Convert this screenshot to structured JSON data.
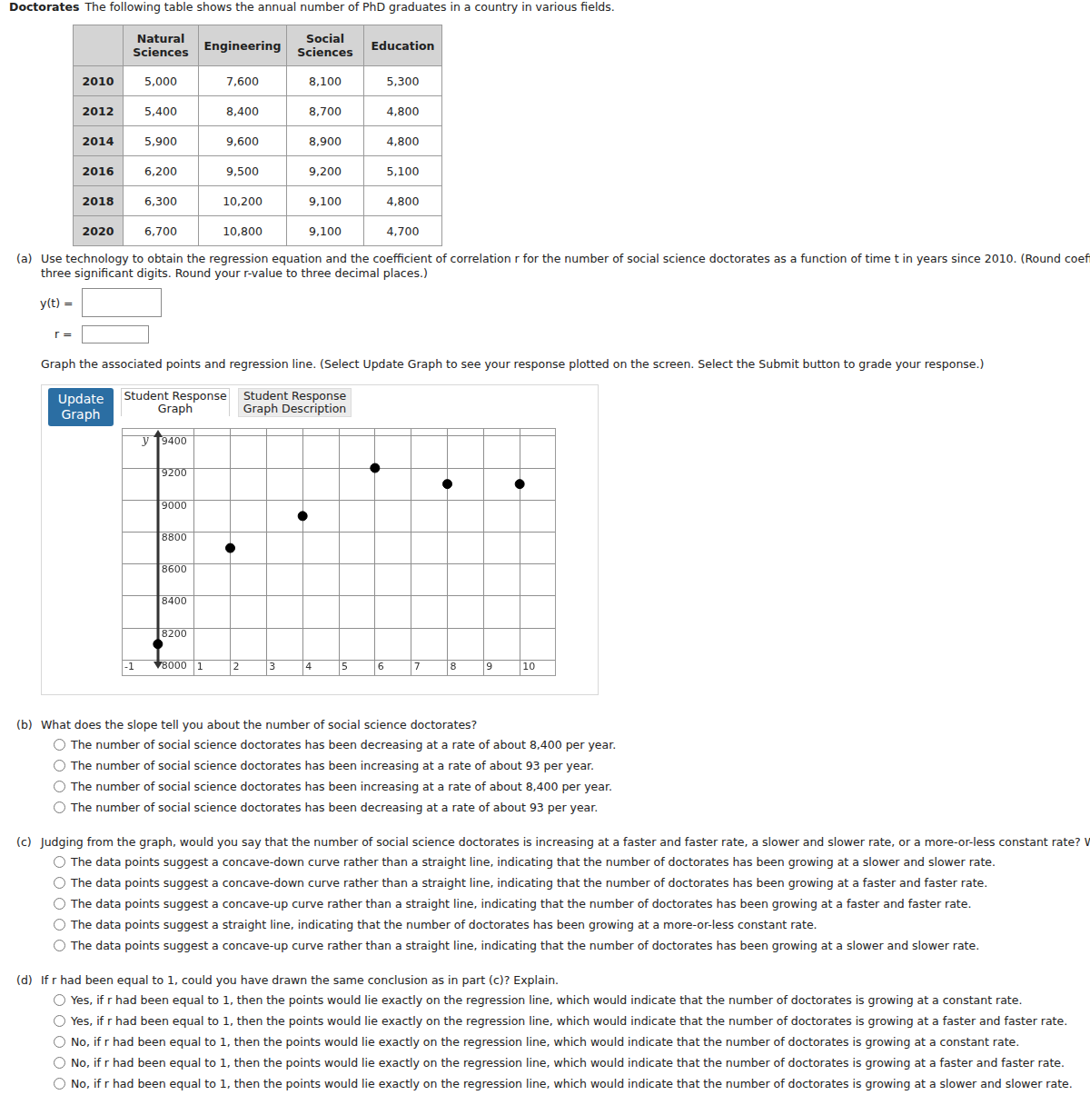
{
  "header": {
    "title": "Doctorates",
    "text": "The following table shows the annual number of PhD graduates in a country in various fields."
  },
  "table": {
    "columns": [
      "",
      "Natural Sciences",
      "Engineering",
      "Social Sciences",
      "Education"
    ],
    "rows": [
      [
        "2010",
        "5,000",
        "7,600",
        "8,100",
        "5,300"
      ],
      [
        "2012",
        "5,400",
        "8,400",
        "8,700",
        "4,800"
      ],
      [
        "2014",
        "5,900",
        "9,600",
        "8,900",
        "4,800"
      ],
      [
        "2016",
        "6,200",
        "9,500",
        "9,200",
        "5,100"
      ],
      [
        "2018",
        "6,300",
        "10,200",
        "9,100",
        "4,800"
      ],
      [
        "2020",
        "6,700",
        "10,800",
        "9,100",
        "4,700"
      ]
    ]
  },
  "part_a": {
    "label": "(a)",
    "text_lines": [
      "Use technology to obtain the regression equation and the coefficient of correlation r for the number of social science doctorates as a function of time t in years since 2010. (Round coefficients to",
      "three significant digits. Round your r-value to three decimal places.)"
    ],
    "fields": [
      "y(t) =",
      "r ="
    ],
    "instruction": "Graph the associated points and regression line. (Select Update Graph to see your response plotted on the screen. Select the Submit button to grade your response.)",
    "button": "Update Graph",
    "tabs": [
      "Student Response Graph",
      "Student Response Graph Description"
    ]
  },
  "chart_data": {
    "type": "scatter",
    "ylabel": "y",
    "x": [
      0,
      2,
      4,
      6,
      8,
      10
    ],
    "values": [
      8100,
      8700,
      8900,
      9200,
      9100,
      9100
    ],
    "color": "#000000",
    "marker": "circle",
    "xlim": [
      -1,
      11
    ],
    "xticks": [
      -1,
      1,
      2,
      3,
      4,
      5,
      6,
      7,
      8,
      9,
      10
    ],
    "ylim": [
      7900,
      9450
    ],
    "yticks": [
      8000,
      8200,
      8400,
      8600,
      8800,
      9000,
      9200,
      9400
    ],
    "grid": true
  },
  "part_b": {
    "label": "(b)",
    "question": "What does the slope tell you about the number of social science doctorates?",
    "options": [
      "The number of social science doctorates has been decreasing at a rate of about 8,400 per year.",
      "The number of social science doctorates has been increasing at a rate of about 93 per year.",
      "The number of social science doctorates has been increasing at a rate of about 8,400 per year.",
      "The number of social science doctorates has been decreasing at a rate of about 93 per year."
    ]
  },
  "part_c": {
    "label": "(c)",
    "question": "Judging from the graph, would you say that the number of social science doctorates is increasing at a faster and faster rate, a slower and slower rate, or a more-or-less constant rate? Why?",
    "options": [
      "The data points suggest a concave-down curve rather than a straight line, indicating that the number of doctorates has been growing at a slower and slower rate.",
      "The data points suggest a concave-down curve rather than a straight line, indicating that the number of doctorates has been growing at a faster and faster rate.",
      "The data points suggest a concave-up curve rather than a straight line, indicating that the number of doctorates has been growing at a faster and faster rate.",
      "The data points suggest a straight line, indicating that the number of doctorates has been growing at a more-or-less constant rate.",
      "The data points suggest a concave-up curve rather than a straight line, indicating that the number of doctorates has been growing at a slower and slower rate."
    ]
  },
  "part_d": {
    "label": "(d)",
    "question": "If r had been equal to 1, could you have drawn the same conclusion as in part (c)? Explain.",
    "options": [
      "Yes, if r had been equal to 1, then the points would lie exactly on the regression line, which would indicate that the number of doctorates is growing at a constant rate.",
      "Yes, if r had been equal to 1, then the points would lie exactly on the regression line, which would indicate that the number of doctorates is growing at a faster and faster rate.",
      "No, if r had been equal to 1, then the points would lie exactly on the regression line, which would indicate that the number of doctorates is growing at a constant rate.",
      "No, if r had been equal to 1, then the points would lie exactly on the regression line, which would indicate that the number of doctorates is growing at a faster and faster rate.",
      "No, if r had been equal to 1, then the points would lie exactly on the regression line, which would indicate that the number of doctorates is growing at a slower and slower rate."
    ]
  }
}
